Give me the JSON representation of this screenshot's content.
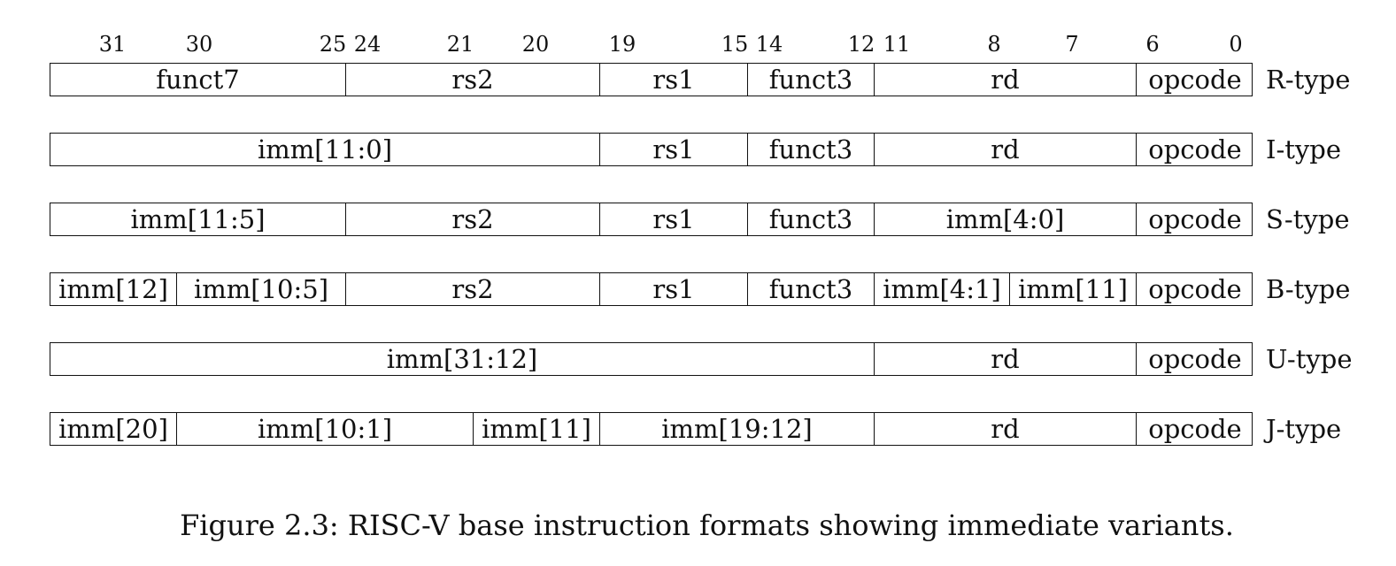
{
  "bit_positions": [
    "31",
    "30",
    "25",
    "24",
    "21",
    "20",
    "19",
    "15",
    "14",
    "12",
    "11",
    "8",
    "7",
    "6",
    "0"
  ],
  "formats": [
    {
      "label": "R-type",
      "fields": [
        {
          "text": "funct7",
          "hi": 31,
          "lo": 25
        },
        {
          "text": "rs2",
          "hi": 24,
          "lo": 20
        },
        {
          "text": "rs1",
          "hi": 19,
          "lo": 15
        },
        {
          "text": "funct3",
          "hi": 14,
          "lo": 12
        },
        {
          "text": "rd",
          "hi": 11,
          "lo": 7
        },
        {
          "text": "opcode",
          "hi": 6,
          "lo": 0
        }
      ]
    },
    {
      "label": "I-type",
      "fields": [
        {
          "text": "imm[11:0]",
          "hi": 31,
          "lo": 20
        },
        {
          "text": "rs1",
          "hi": 19,
          "lo": 15
        },
        {
          "text": "funct3",
          "hi": 14,
          "lo": 12
        },
        {
          "text": "rd",
          "hi": 11,
          "lo": 7
        },
        {
          "text": "opcode",
          "hi": 6,
          "lo": 0
        }
      ]
    },
    {
      "label": "S-type",
      "fields": [
        {
          "text": "imm[11:5]",
          "hi": 31,
          "lo": 25
        },
        {
          "text": "rs2",
          "hi": 24,
          "lo": 20
        },
        {
          "text": "rs1",
          "hi": 19,
          "lo": 15
        },
        {
          "text": "funct3",
          "hi": 14,
          "lo": 12
        },
        {
          "text": "imm[4:0]",
          "hi": 11,
          "lo": 7
        },
        {
          "text": "opcode",
          "hi": 6,
          "lo": 0
        }
      ]
    },
    {
      "label": "B-type",
      "fields": [
        {
          "text": "imm[12]",
          "hi": 31,
          "lo": 31
        },
        {
          "text": "imm[10:5]",
          "hi": 30,
          "lo": 25
        },
        {
          "text": "rs2",
          "hi": 24,
          "lo": 20
        },
        {
          "text": "rs1",
          "hi": 19,
          "lo": 15
        },
        {
          "text": "funct3",
          "hi": 14,
          "lo": 12
        },
        {
          "text": "imm[4:1]",
          "hi": 11,
          "lo": 8
        },
        {
          "text": "imm[11]",
          "hi": 7,
          "lo": 7
        },
        {
          "text": "opcode",
          "hi": 6,
          "lo": 0
        }
      ]
    },
    {
      "label": "U-type",
      "fields": [
        {
          "text": "imm[31:12]",
          "hi": 31,
          "lo": 12
        },
        {
          "text": "rd",
          "hi": 11,
          "lo": 7
        },
        {
          "text": "opcode",
          "hi": 6,
          "lo": 0
        }
      ]
    },
    {
      "label": "J-type",
      "fields": [
        {
          "text": "imm[20]",
          "hi": 31,
          "lo": 31
        },
        {
          "text": "imm[10:1]",
          "hi": 30,
          "lo": 21
        },
        {
          "text": "imm[11]",
          "hi": 20,
          "lo": 20
        },
        {
          "text": "imm[19:12]",
          "hi": 19,
          "lo": 12
        },
        {
          "text": "rd",
          "hi": 11,
          "lo": 7
        },
        {
          "text": "opcode",
          "hi": 6,
          "lo": 0
        }
      ]
    }
  ],
  "caption": "Figure 2.3: RISC-V base instruction formats showing immediate variants."
}
